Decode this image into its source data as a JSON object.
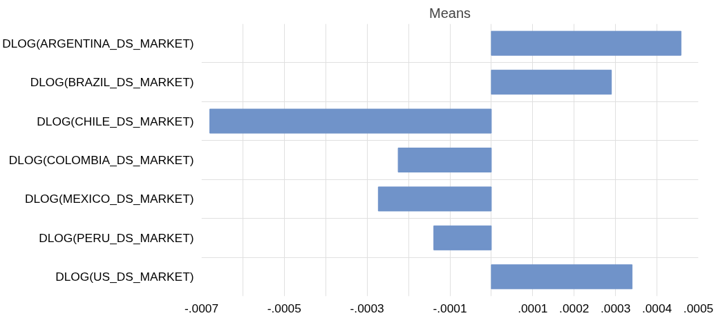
{
  "chart_data": {
    "type": "bar",
    "orientation": "horizontal",
    "title": "Means",
    "categories": [
      "DLOG(ARGENTINA_DS_MARKET)",
      "DLOG(BRAZIL_DS_MARKET)",
      "DLOG(CHILE_DS_MARKET)",
      "DLOG(COLOMBIA_DS_MARKET)",
      "DLOG(MEXICO_DS_MARKET)",
      "DLOG(PERU_DS_MARKET)",
      "DLOG(US_DS_MARKET)"
    ],
    "values": [
      0.000458,
      0.00029,
      -0.00068,
      -0.000225,
      -0.000273,
      -0.000139,
      0.00034
    ],
    "color": "#7093c9",
    "xlim": [
      -0.0007,
      0.0005
    ],
    "xticks": [
      {
        "value": -0.0007,
        "label": "-.0007"
      },
      {
        "value": -0.0006,
        "label": null
      },
      {
        "value": -0.0005,
        "label": "-.0005"
      },
      {
        "value": -0.0004,
        "label": null
      },
      {
        "value": -0.0003,
        "label": "-.0003"
      },
      {
        "value": -0.0002,
        "label": null
      },
      {
        "value": -0.0001,
        "label": "-.0001"
      },
      {
        "value": 0,
        "label": null
      },
      {
        "value": 0.0001,
        "label": ".0001"
      },
      {
        "value": 0.0002,
        "label": ".0002"
      },
      {
        "value": 0.0003,
        "label": ".0003"
      },
      {
        "value": 0.0004,
        "label": ".0004"
      },
      {
        "value": 0.0005,
        "label": ".0005"
      }
    ],
    "grid": true
  }
}
